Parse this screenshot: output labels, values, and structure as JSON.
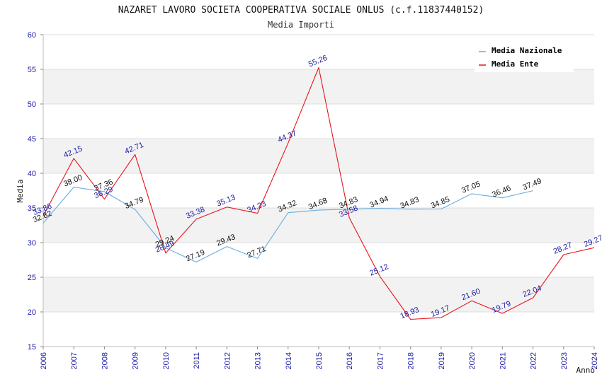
{
  "chart_data": {
    "type": "line",
    "title": "NAZARET LAVORO SOCIETA COOPERATIVA SOCIALE ONLUS (c.f.11837440152)",
    "subtitle": "Media Importi",
    "xlabel": "Anno",
    "ylabel": "Media",
    "ylim": [
      15,
      60
    ],
    "yticks": [
      15,
      20,
      25,
      30,
      35,
      40,
      45,
      50,
      55,
      60
    ],
    "x": [
      "2006",
      "2007",
      "2008",
      "2009",
      "2010",
      "2011",
      "2012",
      "2013",
      "2014",
      "2015",
      "2016",
      "2017",
      "2018",
      "2019",
      "2020",
      "2021",
      "2022",
      "2023",
      "2024"
    ],
    "legend_position": "top-right",
    "series": [
      {
        "name": "Media Nazionale",
        "color": "#6aaee0",
        "values": [
          32.82,
          38.0,
          37.36,
          34.79,
          29.24,
          27.19,
          29.43,
          27.71,
          34.32,
          34.68,
          34.83,
          34.94,
          34.83,
          34.85,
          37.05,
          36.46,
          37.49,
          null,
          null
        ],
        "labels": [
          "32.82",
          "38.00",
          "37.36",
          "34.79",
          "29.24",
          "27.19",
          "29.43",
          "27.71",
          "34.32",
          "34.68",
          "34.83",
          "34.94",
          "34.83",
          "34.85",
          "37.05",
          "36.46",
          "37.49",
          "",
          ""
        ]
      },
      {
        "name": "Media Ente",
        "color": "#e8141c",
        "values": [
          33.86,
          42.15,
          36.29,
          42.71,
          28.49,
          33.38,
          35.13,
          34.23,
          44.37,
          55.26,
          33.58,
          25.12,
          18.93,
          19.17,
          21.6,
          19.79,
          22.04,
          28.27,
          29.27
        ],
        "labels": [
          "33.86",
          "42.15",
          "36.29",
          "42.71",
          "28.49",
          "33.38",
          "35.13",
          "34.23",
          "44.37",
          "55.26",
          "33.58",
          "25.12",
          "18.93",
          "19.17",
          "21.60",
          "19.79",
          "22.04",
          "28.27",
          "29.27"
        ]
      }
    ]
  }
}
